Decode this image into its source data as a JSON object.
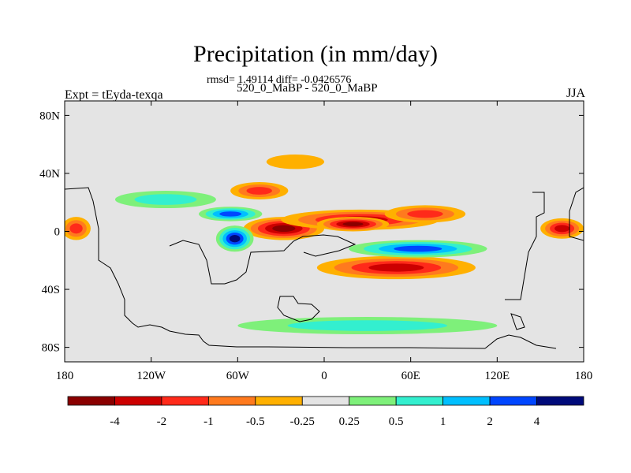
{
  "chart_data": {
    "type": "heatmap",
    "title": "Precipitation (in mm/day)",
    "stats_line": "rmsd= 1.49114 diff= -0.0426576",
    "experiment_line": "520_0_MaBP - 520_0_MaBP",
    "left_string": "Expt = tEyda-texqa",
    "right_string": "JJA",
    "xlim": [
      -180,
      180
    ],
    "ylim": [
      -90,
      90
    ],
    "x_ticks": [
      {
        "value": -180,
        "label": "180"
      },
      {
        "value": -120,
        "label": "120W"
      },
      {
        "value": -60,
        "label": "60W"
      },
      {
        "value": 0,
        "label": "0"
      },
      {
        "value": 60,
        "label": "60E"
      },
      {
        "value": 120,
        "label": "120E"
      },
      {
        "value": 180,
        "label": "180"
      }
    ],
    "y_ticks": [
      {
        "value": 80,
        "label": "80N"
      },
      {
        "value": 40,
        "label": "40N"
      },
      {
        "value": 0,
        "label": "0"
      },
      {
        "value": -40,
        "label": "40S"
      },
      {
        "value": -80,
        "label": "80S"
      }
    ],
    "colorbar": {
      "levels": [
        "-4",
        "-2",
        "-1",
        "-0.5",
        "-0.25",
        "0.25",
        "0.5",
        "1",
        "2",
        "4"
      ],
      "colors": [
        "#8a0000",
        "#cc0000",
        "#ff2a1a",
        "#ff7a1e",
        "#ffb000",
        "#e4e4e4",
        "#7ef07a",
        "#33efcf",
        "#00bfff",
        "#0046ff",
        "#000a7a"
      ]
    },
    "anomaly_regions": [
      {
        "name": "equatorial-atlantic-dry",
        "lon": -28,
        "lat": 2,
        "rlon": 28,
        "rlat": 8,
        "value": -5
      },
      {
        "name": "central-atlantic-dry",
        "lon": 25,
        "lat": 8,
        "rlon": 55,
        "rlat": 7,
        "value": -2.5
      },
      {
        "name": "africa-dry-core",
        "lon": 20,
        "lat": 5,
        "rlon": 25,
        "rlat": 5,
        "value": -5
      },
      {
        "name": "indian-ocean-dry-north",
        "lon": 70,
        "lat": 12,
        "rlon": 28,
        "rlat": 6,
        "value": -2
      },
      {
        "name": "south-indian-dry",
        "lon": 50,
        "lat": -25,
        "rlon": 55,
        "rlat": 8,
        "value": -2.5
      },
      {
        "name": "amazon-wet",
        "lon": -62,
        "lat": -5,
        "rlon": 13,
        "rlat": 9,
        "value": 5
      },
      {
        "name": "caribbean-wet",
        "lon": -65,
        "lat": 12,
        "rlon": 22,
        "rlat": 5,
        "value": 3
      },
      {
        "name": "indian-ocean-wet",
        "lon": 65,
        "lat": -12,
        "rlon": 48,
        "rlat": 6,
        "value": 3
      },
      {
        "name": "pacific-east-dry",
        "lon": -172,
        "lat": 2,
        "rlon": 10,
        "rlat": 8,
        "value": -2
      },
      {
        "name": "west-pacific-dry",
        "lon": 165,
        "lat": 2,
        "rlon": 15,
        "rlat": 7,
        "value": -2.5
      },
      {
        "name": "north-pacific-wet",
        "lon": -110,
        "lat": 22,
        "rlon": 35,
        "rlat": 6,
        "value": 0.6
      },
      {
        "name": "north-atlantic-dry",
        "lon": -45,
        "lat": 28,
        "rlon": 20,
        "rlat": 6,
        "value": -2
      },
      {
        "name": "southern-ocean-wet",
        "lon": 30,
        "lat": -65,
        "rlon": 90,
        "rlat": 6,
        "value": 0.6
      },
      {
        "name": "north-sub-dry",
        "lon": -20,
        "lat": 48,
        "rlon": 20,
        "rlat": 5,
        "value": -0.4
      }
    ]
  }
}
